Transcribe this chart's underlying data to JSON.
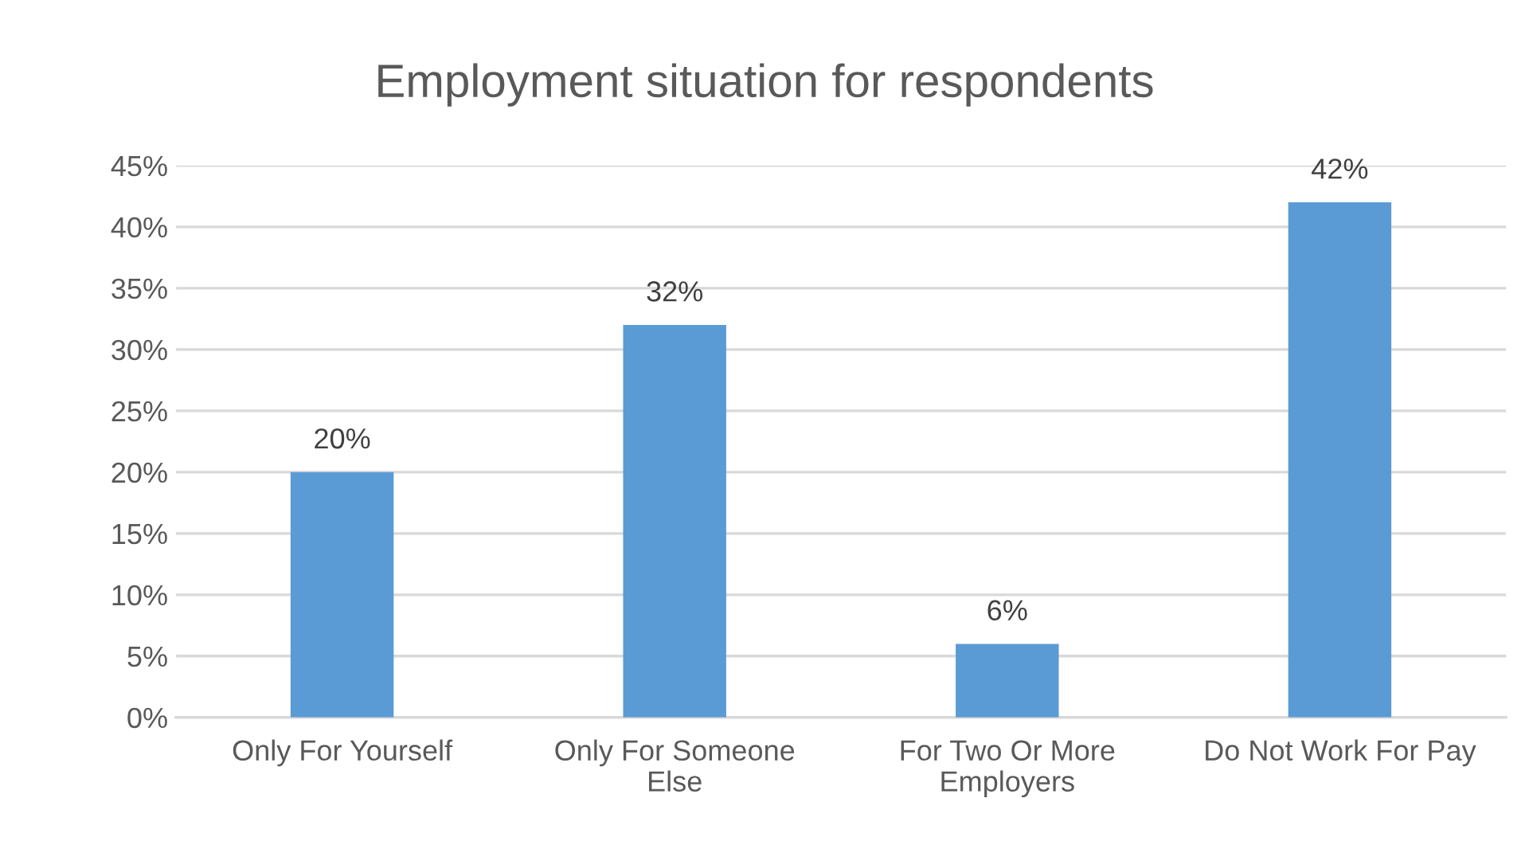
{
  "chart_data": {
    "type": "bar",
    "title": "Employment situation for respondents",
    "categories": [
      "Only For Yourself",
      "Only For Someone\nElse",
      "For Two Or More\nEmployers",
      "Do Not Work For Pay"
    ],
    "values": [
      20,
      32,
      6,
      42
    ],
    "color": "#5b9bd5",
    "value_labels": [
      "20%",
      "32%",
      "6%",
      "42%"
    ],
    "ylim": [
      0,
      45
    ],
    "yticks": [
      {
        "value": 0,
        "label": "0%"
      },
      {
        "value": 5,
        "label": "5%"
      },
      {
        "value": 10,
        "label": "10%"
      },
      {
        "value": 15,
        "label": "15%"
      },
      {
        "value": 20,
        "label": "20%"
      },
      {
        "value": 25,
        "label": "25%"
      },
      {
        "value": 30,
        "label": "30%"
      },
      {
        "value": 35,
        "label": "35%"
      },
      {
        "value": 40,
        "label": "40%"
      },
      {
        "value": 45,
        "label": "45%"
      }
    ],
    "grid": "y"
  }
}
